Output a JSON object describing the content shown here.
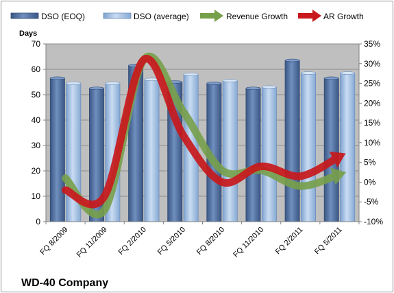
{
  "chart_data": {
    "type": "bar",
    "title": "WD-40 Company",
    "ylabel": "Days",
    "categories": [
      "FQ 8/2009",
      "FQ 11/2009",
      "FQ 2/2010",
      "FQ 5/2010",
      "FQ 8/2010",
      "FQ 11/2010",
      "FQ 2/2011",
      "FQ 5/2011"
    ],
    "ylim": [
      0,
      70
    ],
    "y_ticks": [
      "0",
      "10",
      "20",
      "30",
      "40",
      "50",
      "60",
      "70"
    ],
    "y2lim": [
      -10,
      35
    ],
    "y2_ticks": [
      "-10%",
      "-5%",
      "0%",
      "5%",
      "10%",
      "15%",
      "20%",
      "25%",
      "30%",
      "35%"
    ],
    "grid": true,
    "legend_position": "top",
    "series": [
      {
        "name": "DSO (EOQ)",
        "kind": "bar",
        "axis": "left",
        "color": "#4f6fa0",
        "values": [
          56.5,
          52.5,
          61.5,
          55,
          54.5,
          52.5,
          63.5,
          56.5
        ]
      },
      {
        "name": "DSO (average)",
        "kind": "bar",
        "axis": "left",
        "color": "#a9c4e4",
        "values": [
          54.5,
          54.5,
          56,
          58,
          55.5,
          53,
          58.5,
          58.5
        ]
      },
      {
        "name": "Revenue Growth",
        "kind": "line",
        "axis": "right",
        "unit": "%",
        "color": "#77a04a",
        "values": [
          1,
          -7,
          31,
          18,
          3,
          3,
          -1,
          2
        ]
      },
      {
        "name": "AR Growth",
        "kind": "line",
        "axis": "right",
        "unit": "%",
        "color": "#c8191c",
        "values": [
          -2,
          -3.5,
          31,
          12,
          0,
          4,
          1.5,
          6.5
        ]
      }
    ]
  }
}
